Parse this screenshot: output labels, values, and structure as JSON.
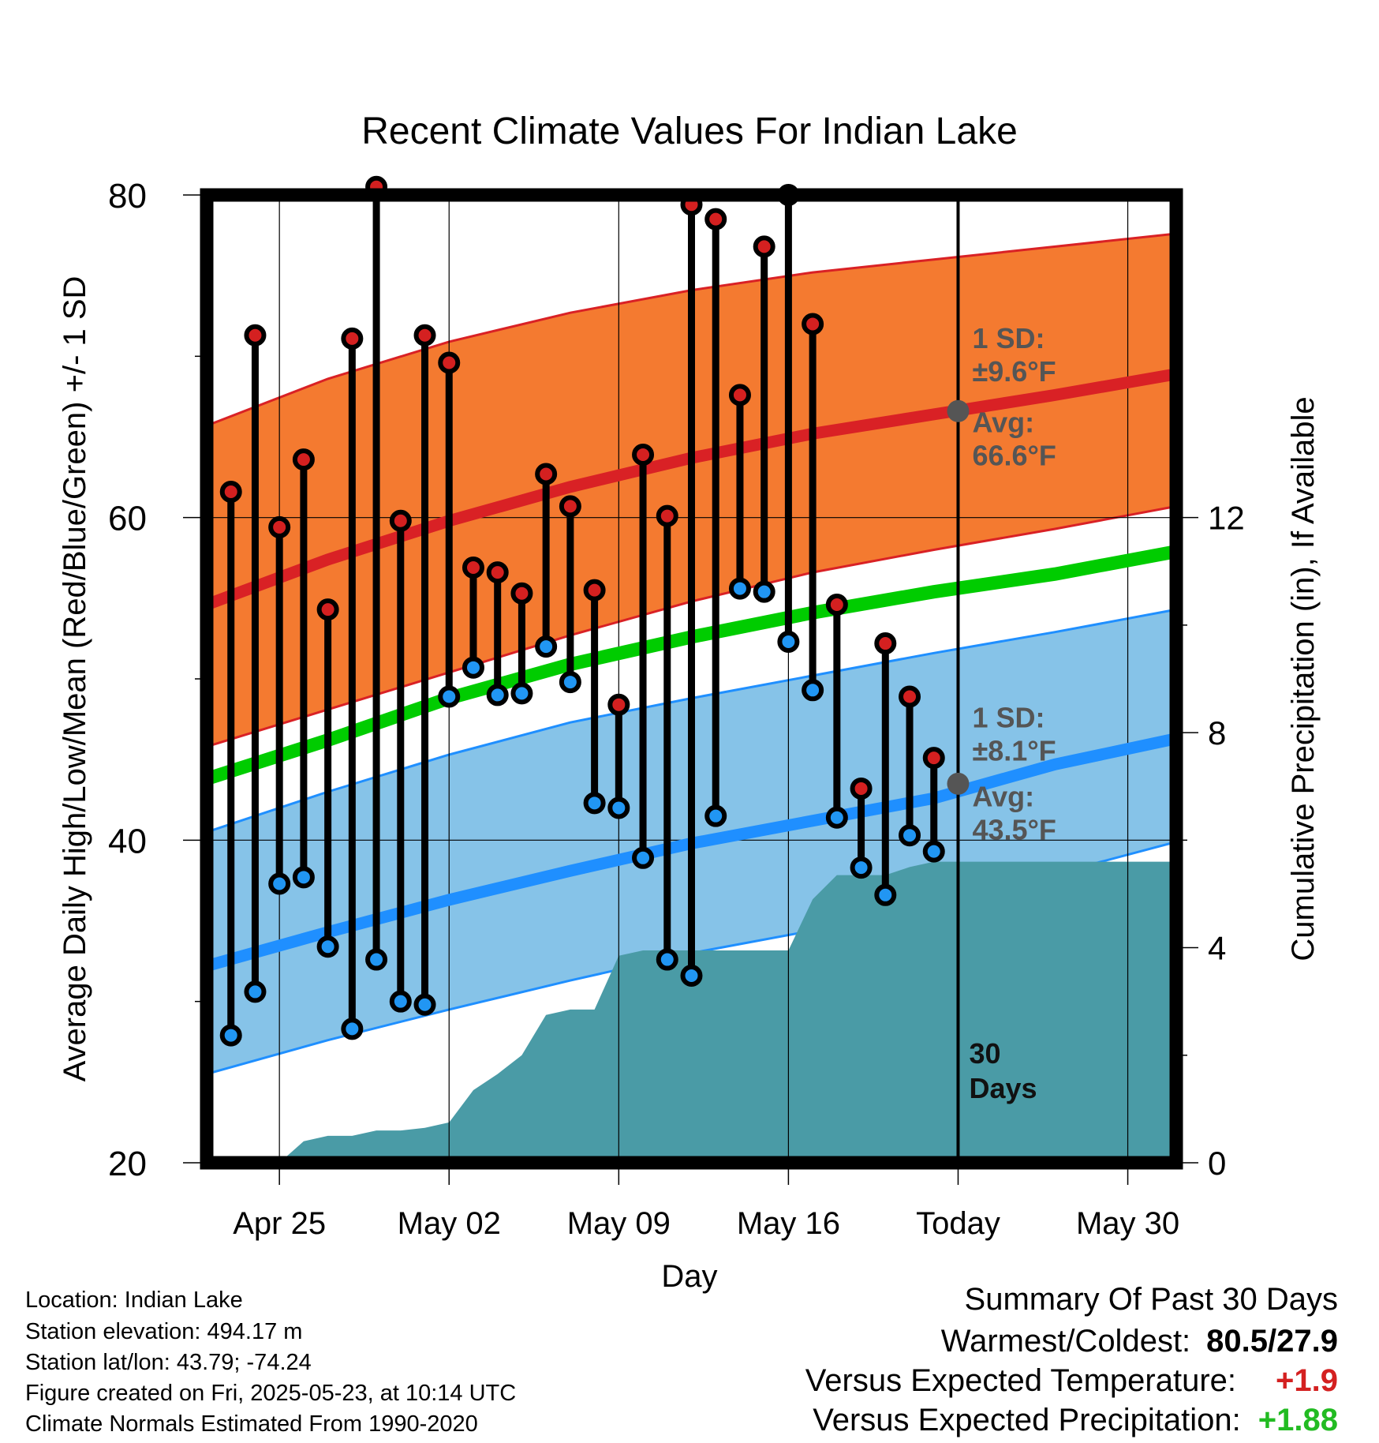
{
  "chart_data": {
    "type": "line",
    "title": "Recent Climate Values For Indian Lake",
    "xlabel": "Day",
    "ylabel": "Average Daily High/Low/Mean (Red/Blue/Green) +/- 1 SD",
    "ylabel2": "Cumulative Precipitation (in), If Available",
    "ylim": [
      20,
      80
    ],
    "y2lim": [
      0,
      18
    ],
    "yticks": [
      20,
      40,
      60,
      80
    ],
    "y2ticks": [
      0,
      4,
      8,
      12
    ],
    "xrange": [
      "2025-04-22",
      "2025-06-01"
    ],
    "xticks": [
      {
        "date": "2025-04-25",
        "label": "Apr 25"
      },
      {
        "date": "2025-05-02",
        "label": "May 02"
      },
      {
        "date": "2025-05-09",
        "label": "May 09"
      },
      {
        "date": "2025-05-16",
        "label": "May 16"
      },
      {
        "date": "2025-05-23",
        "label": "Today"
      },
      {
        "date": "2025-05-30",
        "label": "May 30"
      }
    ],
    "today": "2025-05-23",
    "days_label": "30\nDays",
    "normals": {
      "dates": [
        "2025-04-22",
        "2025-04-27",
        "2025-05-02",
        "2025-05-07",
        "2025-05-12",
        "2025-05-17",
        "2025-05-22",
        "2025-05-27",
        "2025-06-01"
      ],
      "high_mean": [
        54.6,
        57.4,
        59.8,
        61.9,
        63.7,
        65.2,
        66.4,
        67.6,
        68.9
      ],
      "high_upper": [
        65.7,
        68.6,
        70.9,
        72.7,
        74.1,
        75.2,
        76.0,
        76.8,
        77.6
      ],
      "high_lower": [
        45.8,
        48.1,
        50.4,
        52.7,
        54.8,
        56.6,
        58.0,
        59.3,
        60.7
      ],
      "mean": [
        43.8,
        46.2,
        48.8,
        50.9,
        52.6,
        54.1,
        55.4,
        56.5,
        57.9
      ],
      "low_mean": [
        32.2,
        34.3,
        36.3,
        38.1,
        39.8,
        41.2,
        42.6,
        44.7,
        46.3
      ],
      "low_upper": [
        40.5,
        43.0,
        45.3,
        47.3,
        48.8,
        50.2,
        51.6,
        52.9,
        54.3
      ],
      "low_lower": [
        25.5,
        27.6,
        29.5,
        31.3,
        33.0,
        34.4,
        35.9,
        37.9,
        39.9
      ]
    },
    "observed": {
      "dates": [
        "2025-04-23",
        "2025-04-24",
        "2025-04-25",
        "2025-04-26",
        "2025-04-27",
        "2025-04-28",
        "2025-04-29",
        "2025-04-30",
        "2025-05-01",
        "2025-05-02",
        "2025-05-03",
        "2025-05-04",
        "2025-05-05",
        "2025-05-06",
        "2025-05-07",
        "2025-05-08",
        "2025-05-09",
        "2025-05-10",
        "2025-05-11",
        "2025-05-12",
        "2025-05-13",
        "2025-05-14",
        "2025-05-15",
        "2025-05-16",
        "2025-05-17",
        "2025-05-18",
        "2025-05-19",
        "2025-05-20",
        "2025-05-21",
        "2025-05-22"
      ],
      "high": [
        61.6,
        71.3,
        59.4,
        63.6,
        54.3,
        71.1,
        80.5,
        59.8,
        71.3,
        69.6,
        56.9,
        56.6,
        55.3,
        62.7,
        60.7,
        55.5,
        48.4,
        63.9,
        60.1,
        79.4,
        78.5,
        67.6,
        76.8,
        80.0,
        72.0,
        54.6,
        43.2,
        52.2,
        48.9,
        45.1
      ],
      "low": [
        27.9,
        30.6,
        37.3,
        37.7,
        33.4,
        28.3,
        32.6,
        30.0,
        29.8,
        48.9,
        50.7,
        49.0,
        49.1,
        52.0,
        49.8,
        42.3,
        42.0,
        38.9,
        32.6,
        31.6,
        41.5,
        55.6,
        55.4,
        52.3,
        49.3,
        41.4,
        38.3,
        36.6,
        40.3,
        39.3
      ]
    },
    "precip": {
      "dates": [
        "2025-04-22",
        "2025-04-23",
        "2025-04-24",
        "2025-04-25",
        "2025-04-26",
        "2025-04-27",
        "2025-04-28",
        "2025-04-29",
        "2025-04-30",
        "2025-05-01",
        "2025-05-02",
        "2025-05-03",
        "2025-05-04",
        "2025-05-05",
        "2025-05-06",
        "2025-05-07",
        "2025-05-08",
        "2025-05-09",
        "2025-05-10",
        "2025-05-11",
        "2025-05-12",
        "2025-05-13",
        "2025-05-14",
        "2025-05-15",
        "2025-05-16",
        "2025-05-17",
        "2025-05-18",
        "2025-05-19",
        "2025-05-20",
        "2025-05-21",
        "2025-05-22",
        "2025-05-23",
        "2025-06-01"
      ],
      "values": [
        0,
        0,
        0,
        0,
        0.4,
        0.5,
        0.5,
        0.6,
        0.6,
        0.65,
        0.75,
        1.35,
        1.65,
        2.0,
        2.75,
        2.85,
        2.85,
        3.85,
        3.95,
        3.95,
        3.95,
        3.95,
        3.95,
        3.95,
        3.95,
        4.9,
        5.35,
        5.35,
        5.35,
        5.5,
        5.6,
        5.6,
        5.6
      ]
    },
    "annotations": {
      "high_sd": "1 SD:\n±9.6°F",
      "high_avg": "Avg:\n66.6°F",
      "low_sd": "1 SD:\n±8.1°F",
      "low_avg": "Avg:\n43.5°F",
      "today_high_avg": 66.6,
      "today_low_avg": 43.5
    },
    "colors": {
      "high_band": "#f47a30",
      "high_line": "#d92125",
      "mean_line": "#00cc00",
      "low_band": "#86c3e8",
      "low_line": "#1f8fff",
      "precip": "#4a9ba6",
      "high_dot": "#d42020",
      "low_dot": "#2196f3",
      "annotation": "#555555"
    }
  },
  "meta": {
    "location": "Location: Indian Lake",
    "elevation": "Station elevation: 494.17 m",
    "latlon": "Station lat/lon: 43.79; -74.24",
    "created": "Figure created on Fri, 2025-05-23, at 10:14 UTC",
    "normals": "Climate Normals Estimated From 1990-2020"
  },
  "summary": {
    "title": "Summary Of Past 30 Days",
    "warm_cold_label": "Warmest/Coldest:",
    "warm_cold_value": "80.5/27.9",
    "temp_label": "Versus Expected Temperature:",
    "temp_value": "+1.9",
    "temp_color": "#d42020",
    "precip_label": "Versus Expected Precipitation:",
    "precip_value": "+1.88",
    "precip_color": "#22bb22"
  }
}
